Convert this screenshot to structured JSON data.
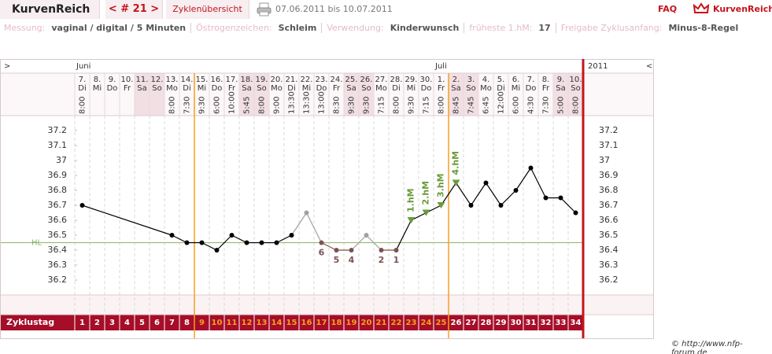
{
  "header": {
    "brand": "KurvenReich",
    "cycle_nav": "< # 21 >",
    "overview": "Zyklenübersicht",
    "date_range": "07.06.2011 bis 10.07.2011",
    "faq": "FAQ",
    "logo": "KurvenReich"
  },
  "info": [
    {
      "label": "Messung:",
      "value": "vaginal / digital / 5 Minuten"
    },
    {
      "label": "Östrogenzeichen:",
      "value": "Schleim"
    },
    {
      "label": "Verwendung:",
      "value": "Kinderwunsch"
    },
    {
      "label": "früheste 1.hM:",
      "value": 17
    },
    {
      "label": "Freigabe Zyklusanfang:",
      "value": "Minus-8-Regel"
    }
  ],
  "footer": "© http://www.nfp-forum.de",
  "chart_data": {
    "type": "line",
    "nav_prev": ">",
    "nav_next": "<",
    "year": "2011",
    "month_labels": [
      "Juni",
      null,
      null,
      null,
      null,
      null,
      null,
      null,
      null,
      null,
      null,
      null,
      null,
      null,
      null,
      null,
      null,
      null,
      null,
      null,
      null,
      null,
      null,
      null,
      "Juli",
      null,
      null,
      null,
      null,
      null,
      null,
      null,
      null,
      null
    ],
    "categories": [
      "7.",
      "8.",
      "9.",
      "10.",
      "11.",
      "12.",
      "13.",
      "14.",
      "15.",
      "16.",
      "17.",
      "18.",
      "19.",
      "20.",
      "21.",
      "22.",
      "23.",
      "24.",
      "25.",
      "26.",
      "27.",
      "28.",
      "29.",
      "30.",
      "1.",
      "2.",
      "3.",
      "4.",
      "5.",
      "6.",
      "7.",
      "8.",
      "9.",
      "10."
    ],
    "weekdays": [
      "Di",
      "Mi",
      "Do",
      "Fr",
      "Sa",
      "So",
      "Mo",
      "Di",
      "Mi",
      "Do",
      "Fr",
      "Sa",
      "So",
      "Mo",
      "Di",
      "Mi",
      "Do",
      "Fr",
      "Sa",
      "So",
      "Mo",
      "Di",
      "Mi",
      "Do",
      "Fr",
      "Sa",
      "So",
      "Mo",
      "Di",
      "Mi",
      "Do",
      "Fr",
      "Sa",
      "So"
    ],
    "weekend": [
      false,
      false,
      false,
      false,
      true,
      true,
      false,
      false,
      false,
      false,
      false,
      true,
      true,
      false,
      false,
      false,
      false,
      false,
      true,
      true,
      false,
      false,
      false,
      false,
      false,
      true,
      true,
      false,
      false,
      false,
      false,
      false,
      true,
      true
    ],
    "times": [
      "8:00",
      null,
      null,
      null,
      null,
      null,
      "8:00",
      "7:30",
      "9:30",
      "6:00",
      "10:00",
      "5:45",
      "8:00",
      "9:00",
      "13:30",
      "13:30",
      "13:00",
      "8:30",
      "9:30",
      "9:30",
      "7:15",
      "8:00",
      "9:30",
      "7:15",
      "8:00",
      "8:45",
      "7:45",
      "6:45",
      "12:00",
      "6:00",
      "4:30",
      "7:30",
      "5:00",
      "8:00"
    ],
    "values": [
      36.7,
      null,
      null,
      null,
      null,
      null,
      36.5,
      36.45,
      36.45,
      36.4,
      36.5,
      36.45,
      36.45,
      36.45,
      36.5,
      36.65,
      36.45,
      36.4,
      36.4,
      36.5,
      36.4,
      36.4,
      36.6,
      36.65,
      36.7,
      36.85,
      36.7,
      36.85,
      36.7,
      36.8,
      36.95,
      36.75,
      36.75,
      36.65
    ],
    "point_kinds": [
      "normal",
      null,
      null,
      null,
      null,
      null,
      "normal",
      "normal",
      "normal",
      "normal",
      "normal",
      "normal",
      "normal",
      "normal",
      "normal",
      "excluded",
      "low",
      "low",
      "low",
      "excluded",
      "low",
      "low",
      "high",
      "high",
      "high",
      "high",
      "normal",
      "normal",
      "normal",
      "normal",
      "normal",
      "normal",
      "normal",
      "normal"
    ],
    "point_labels": [
      null,
      null,
      null,
      null,
      null,
      null,
      null,
      null,
      null,
      null,
      null,
      null,
      null,
      null,
      null,
      null,
      "6",
      "5",
      "4",
      null,
      "2",
      "1",
      "1.hM",
      "2.hM",
      "3.hM",
      "4.hM",
      null,
      null,
      null,
      null,
      null,
      null,
      null,
      null
    ],
    "kind_colors": {
      "normal": "#000000",
      "excluded": "#a0a0a0",
      "low": "#7a5252",
      "high": "#6b9a3a"
    },
    "ylim": [
      36.1,
      37.3
    ],
    "yticks": [
      36.2,
      36.3,
      36.4,
      36.5,
      36.6,
      36.7,
      36.8,
      36.9,
      37,
      37.1,
      37.2
    ],
    "coverline": {
      "label": "HL",
      "value": 36.45,
      "color": "#8fb56a"
    },
    "cycle_day_label": "Zyklustag",
    "cycle_days": [
      1,
      2,
      3,
      4,
      5,
      6,
      7,
      8,
      9,
      10,
      11,
      12,
      13,
      14,
      15,
      16,
      17,
      18,
      19,
      20,
      21,
      22,
      23,
      24,
      25,
      26,
      27,
      28,
      29,
      30,
      31,
      32,
      33,
      34
    ],
    "fertile_window": [
      9,
      25
    ],
    "window_color": "#f5a01e",
    "today_color": "#c4141c"
  }
}
